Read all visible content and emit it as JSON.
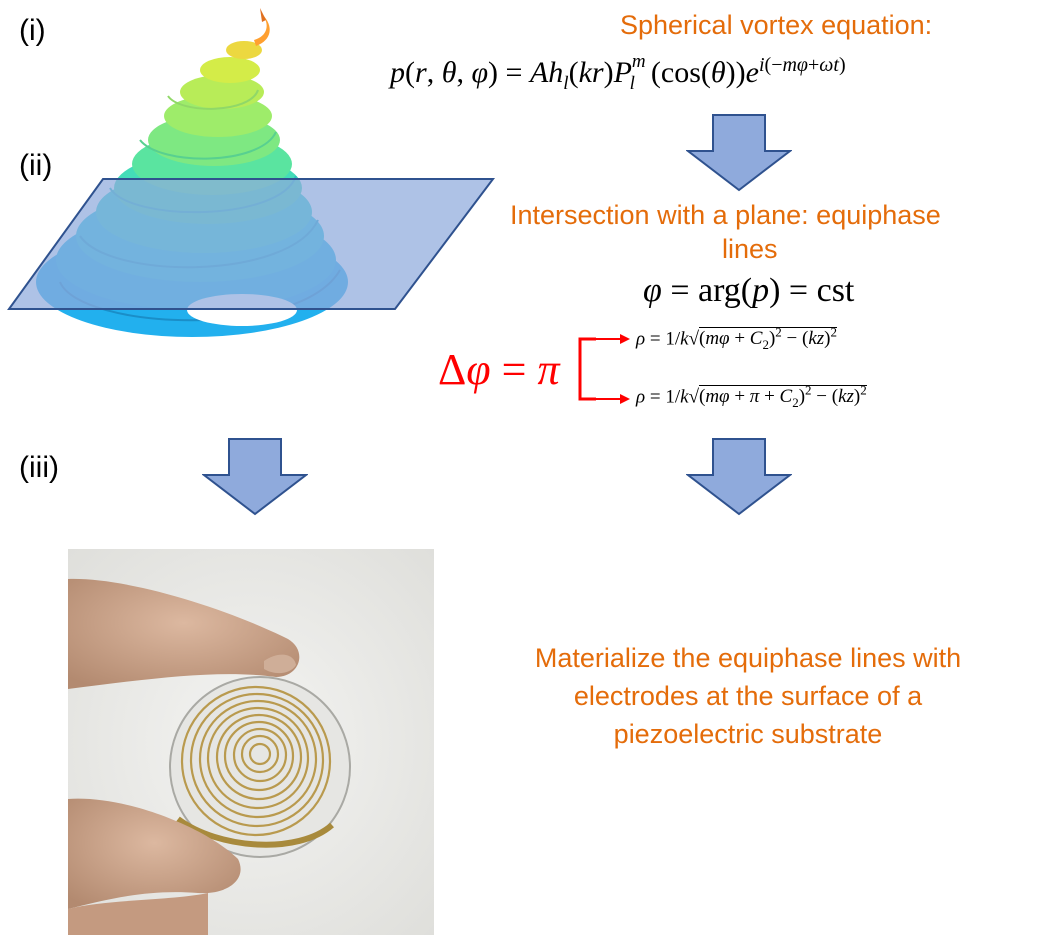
{
  "labels": {
    "i": "(i)",
    "ii": "(ii)",
    "iii": "(iii)"
  },
  "text": {
    "spherical_title": "Spherical vortex equation:",
    "intersection_title_line1": "Intersection with a plane: equiphase",
    "intersection_title_line2": "lines",
    "materialize_line1": "Materialize the equiphase lines with",
    "materialize_line2": "electrodes at the surface of a",
    "materialize_line3": "piezoelectric substrate"
  },
  "equations": {
    "spherical_vortex": "p(r, θ, φ) = A h_l(kr) P_l^m(cos(θ)) e^{i(−mφ+ωt)}",
    "equiphase": "φ = arg(p) = cst",
    "delta_phi": "Δφ = π",
    "rho_1": "ρ = 1/k √((mφ + C₂)² − (kz)²)",
    "rho_2": "ρ = 1/k √((mφ + π + C₂)² − (kz)²)"
  },
  "colors": {
    "accent_orange": "#e46c0a",
    "arrow_fill": "#8faadc",
    "arrow_stroke": "#2f528f",
    "plane_fill": "#8faadc",
    "plane_stroke": "#2f528f",
    "delta_red": "#ff0000"
  },
  "figure": {
    "vortex_image": "3d-spiral-surface (jet colormap)",
    "photo": "fingers holding transparent wafer with spiral gold electrodes"
  }
}
